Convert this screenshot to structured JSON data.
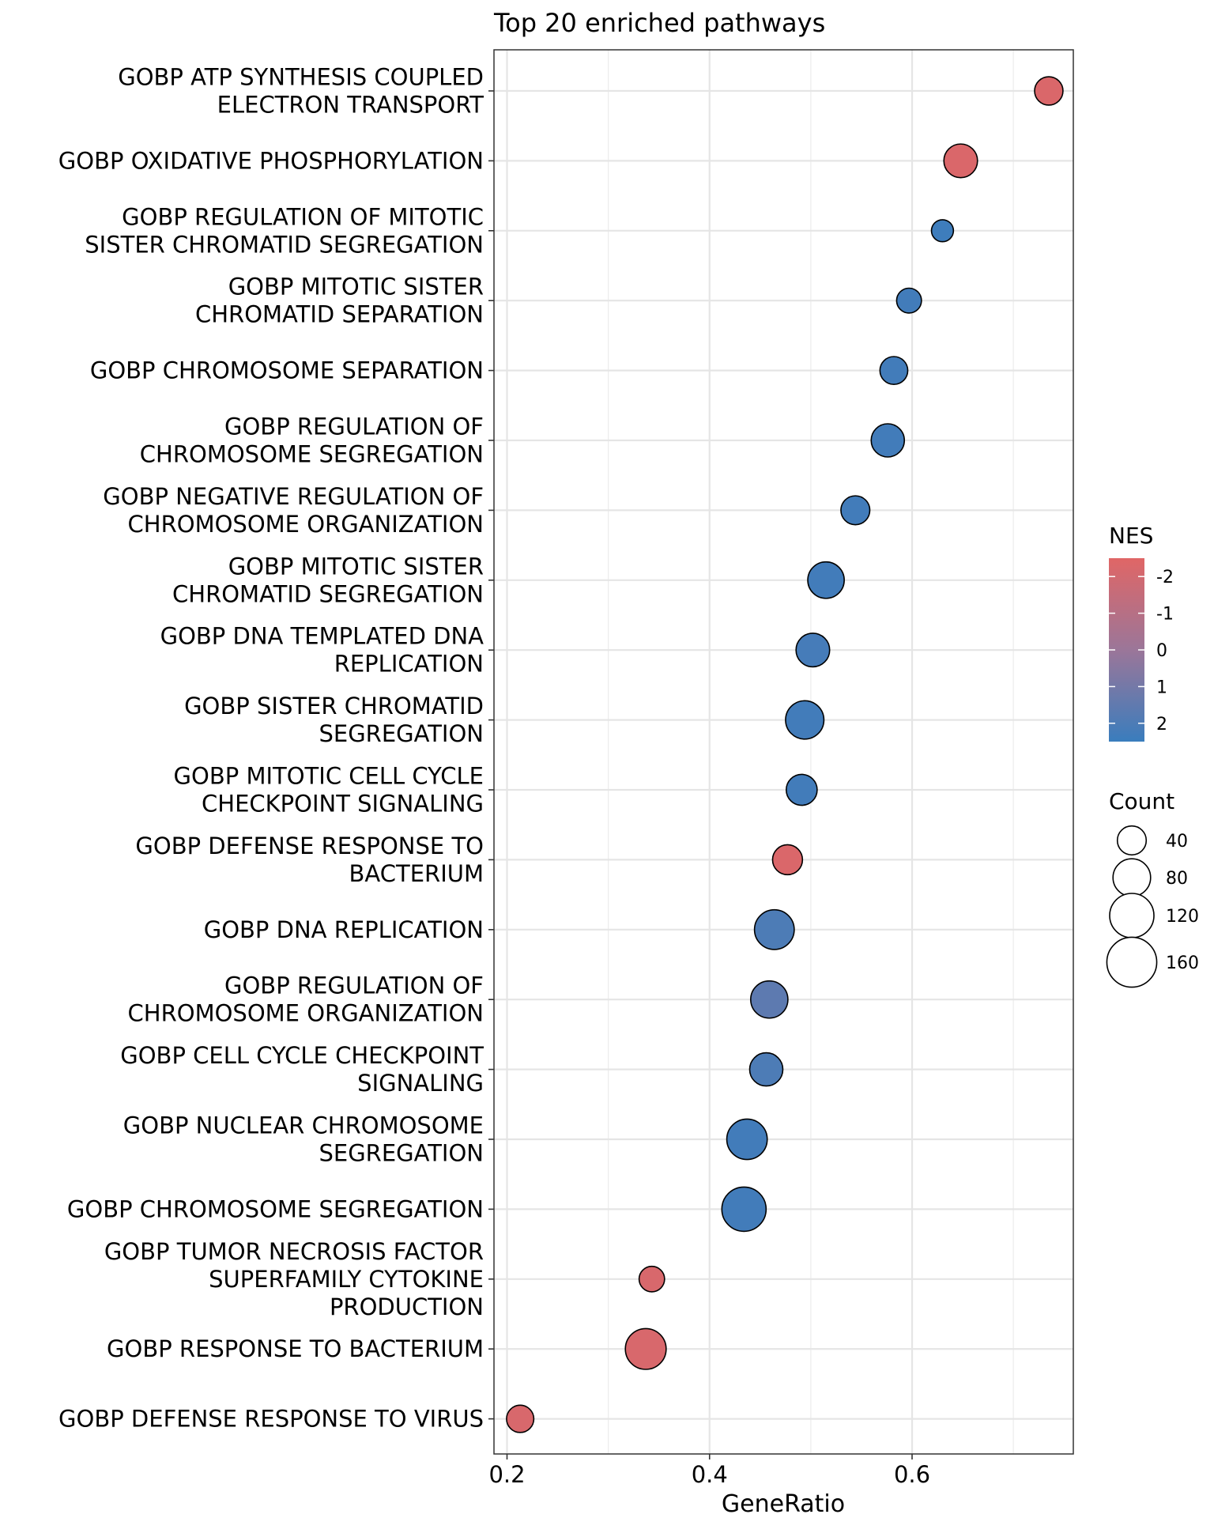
{
  "chart_data": {
    "type": "scatter",
    "title": "Top 20 enriched pathways",
    "xlabel": "GeneRatio",
    "ylabel": "",
    "xlim": [
      0.19,
      0.75
    ],
    "x_ticks": [
      0.2,
      0.4,
      0.6
    ],
    "x_tick_labels": [
      "0.2",
      "0.4",
      "0.6"
    ],
    "grid": true,
    "categories": [
      [
        "GOBP ATP SYNTHESIS COUPLED",
        "ELECTRON TRANSPORT"
      ],
      [
        "GOBP OXIDATIVE PHOSPHORYLATION"
      ],
      [
        "GOBP REGULATION OF MITOTIC",
        "SISTER CHROMATID SEGREGATION"
      ],
      [
        "GOBP MITOTIC SISTER",
        "CHROMATID SEPARATION"
      ],
      [
        "GOBP CHROMOSOME SEPARATION"
      ],
      [
        "GOBP REGULATION OF",
        "CHROMOSOME SEGREGATION"
      ],
      [
        "GOBP NEGATIVE REGULATION OF",
        "CHROMOSOME ORGANIZATION"
      ],
      [
        "GOBP MITOTIC SISTER",
        "CHROMATID SEGREGATION"
      ],
      [
        "GOBP DNA TEMPLATED DNA",
        "REPLICATION"
      ],
      [
        "GOBP SISTER CHROMATID",
        "SEGREGATION"
      ],
      [
        "GOBP MITOTIC CELL CYCLE",
        "CHECKPOINT SIGNALING"
      ],
      [
        "GOBP DEFENSE RESPONSE TO",
        "BACTERIUM"
      ],
      [
        "GOBP DNA REPLICATION"
      ],
      [
        "GOBP REGULATION OF",
        "CHROMOSOME ORGANIZATION"
      ],
      [
        "GOBP CELL CYCLE CHECKPOINT",
        "SIGNALING"
      ],
      [
        "GOBP NUCLEAR CHROMOSOME",
        "SEGREGATION"
      ],
      [
        "GOBP CHROMOSOME SEGREGATION"
      ],
      [
        "GOBP TUMOR NECROSIS FACTOR",
        "SUPERFAMILY CYTOKINE",
        "PRODUCTION"
      ],
      [
        "GOBP RESPONSE TO BACTERIUM"
      ],
      [
        "GOBP DEFENSE RESPONSE TO VIRUS"
      ]
    ],
    "x": [
      0.735,
      0.648,
      0.63,
      0.597,
      0.582,
      0.576,
      0.544,
      0.515,
      0.502,
      0.494,
      0.491,
      0.477,
      0.464,
      0.459,
      0.456,
      0.437,
      0.434,
      0.343,
      0.337,
      0.213
    ],
    "count": [
      38,
      60,
      18,
      26,
      36,
      58,
      40,
      74,
      60,
      84,
      48,
      44,
      92,
      78,
      58,
      96,
      120,
      28,
      98,
      34
    ],
    "nes": [
      -2.3,
      -2.3,
      2.4,
      2.3,
      2.3,
      2.3,
      2.3,
      2.3,
      2.2,
      2.3,
      2.3,
      -2.3,
      2.0,
      1.6,
      2.0,
      2.3,
      2.3,
      -2.2,
      -2.2,
      -2.2
    ],
    "color_legend": {
      "title": "NES",
      "ticks": [
        -2,
        -1,
        0,
        1,
        2
      ],
      "tick_labels": [
        "-2",
        "-1",
        "0",
        "1",
        "2"
      ],
      "low_color": "#E06666",
      "high_color": "#3A7DBD"
    },
    "size_legend": {
      "title": "Count",
      "values": [
        40,
        80,
        120,
        160
      ],
      "labels": [
        "40",
        "80",
        "120",
        "160"
      ]
    },
    "legend_position": "right"
  }
}
